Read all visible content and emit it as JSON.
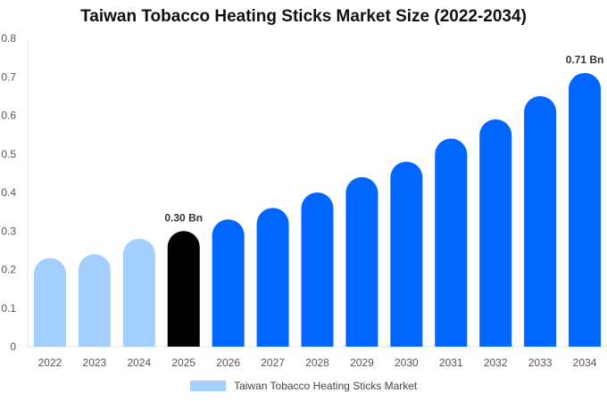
{
  "chart_data": {
    "type": "bar",
    "title": "Taiwan Tobacco Heating Sticks Market Size (2022-2034)",
    "xlabel": "",
    "ylabel": "",
    "categories": [
      "2022",
      "2023",
      "2024",
      "2025",
      "2026",
      "2027",
      "2028",
      "2029",
      "2030",
      "2031",
      "2032",
      "2033",
      "2034"
    ],
    "series": [
      {
        "name": "Taiwan Tobacco Heating Sticks Market",
        "values": [
          0.23,
          0.24,
          0.28,
          0.3,
          0.33,
          0.36,
          0.4,
          0.44,
          0.48,
          0.54,
          0.59,
          0.65,
          0.71
        ]
      }
    ],
    "ylim": [
      0,
      0.8
    ],
    "yticks": [
      "0",
      "0.1",
      "0.2",
      "0.3",
      "0.4",
      "0.5",
      "0.6",
      "0.7",
      "0.8"
    ],
    "data_labels": [
      {
        "category": "2025",
        "text": "0.30 Bn"
      },
      {
        "category": "2034",
        "text": "0.71 Bn"
      }
    ],
    "colors": {
      "historical": "#a3cfff",
      "base_year": "#000000",
      "forecast": "#0066ff",
      "legend_swatch": "#a3cfff"
    },
    "bar_color_groups": [
      "historical",
      "historical",
      "historical",
      "base_year",
      "forecast",
      "forecast",
      "forecast",
      "forecast",
      "forecast",
      "forecast",
      "forecast",
      "forecast",
      "forecast"
    ],
    "grid": false,
    "legend_position": "bottom"
  }
}
